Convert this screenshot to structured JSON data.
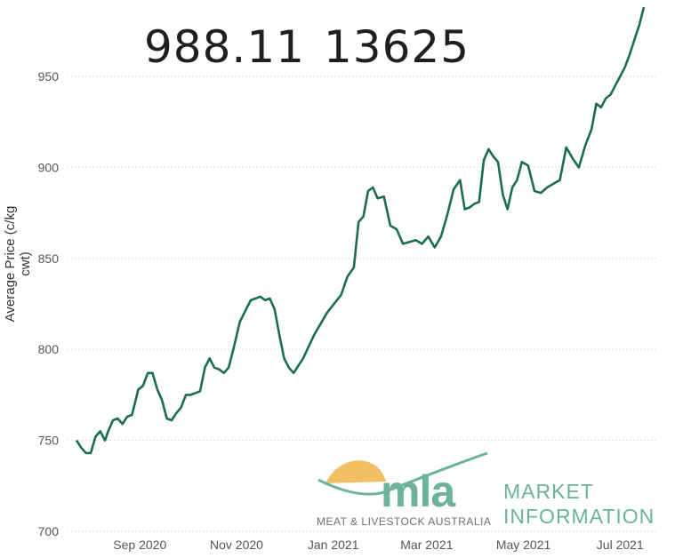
{
  "headline": {
    "price": "988.11",
    "volume": "13625"
  },
  "logo": {
    "name": "mla",
    "subtitle": "MEAT & LIVESTOCK AUSTRALIA",
    "tag_line1": "MARKET",
    "tag_line2": "INFORMATION",
    "sun_color": "#f2c063",
    "accent_color": "#6bb39a"
  },
  "chart_data": {
    "type": "line",
    "ylabel": "Average Price (c/kg cwt)",
    "xlabel": "",
    "ylim": [
      700,
      975
    ],
    "yticks": [
      700,
      750,
      800,
      850,
      900,
      950
    ],
    "xticks": [
      {
        "label": "Sep 2020",
        "date": "2020-09-01"
      },
      {
        "label": "Nov 2020",
        "date": "2020-11-01"
      },
      {
        "label": "Jan 2021",
        "date": "2021-01-01"
      },
      {
        "label": "Mar 2021",
        "date": "2021-03-01"
      },
      {
        "label": "May 2021",
        "date": "2021-05-01"
      },
      {
        "label": "Jul 2021",
        "date": "2021-07-01"
      }
    ],
    "grid": "horizontal-dotted",
    "line_color": "#1b6e4c",
    "series": [
      {
        "x": [
          "2020-07-23",
          "2020-07-26",
          "2020-07-29",
          "2020-08-01",
          "2020-08-04",
          "2020-08-07",
          "2020-08-10",
          "2020-08-12",
          "2020-08-15",
          "2020-08-18",
          "2020-08-21",
          "2020-08-24",
          "2020-08-27",
          "2020-08-31",
          "2020-09-03",
          "2020-09-06",
          "2020-09-09",
          "2020-09-12",
          "2020-09-15",
          "2020-09-18",
          "2020-09-21",
          "2020-09-24",
          "2020-09-27",
          "2020-09-30",
          "2020-10-03",
          "2020-10-06",
          "2020-10-09",
          "2020-10-12",
          "2020-10-15",
          "2020-10-18",
          "2020-10-21",
          "2020-10-24",
          "2020-10-27",
          "2020-10-30",
          "2020-11-03",
          "2020-11-07",
          "2020-11-10",
          "2020-11-13",
          "2020-11-16",
          "2020-11-19",
          "2020-11-22",
          "2020-11-25",
          "2020-11-28",
          "2020-12-01",
          "2020-12-04",
          "2020-12-07",
          "2020-12-10",
          "2020-12-13",
          "2020-12-20",
          "2020-12-28",
          "2021-01-06",
          "2021-01-10",
          "2021-01-14",
          "2021-01-17",
          "2021-01-20",
          "2021-01-23",
          "2021-01-26",
          "2021-01-29",
          "2021-02-02",
          "2021-02-06",
          "2021-02-10",
          "2021-02-14",
          "2021-02-18",
          "2021-02-22",
          "2021-02-26",
          "2021-03-02",
          "2021-03-06",
          "2021-03-10",
          "2021-03-14",
          "2021-03-18",
          "2021-03-22",
          "2021-03-25",
          "2021-03-28",
          "2021-03-31",
          "2021-04-03",
          "2021-04-06",
          "2021-04-09",
          "2021-04-12",
          "2021-04-15",
          "2021-04-18",
          "2021-04-21",
          "2021-04-24",
          "2021-04-27",
          "2021-04-30",
          "2021-05-04",
          "2021-05-08",
          "2021-05-12",
          "2021-05-16",
          "2021-05-20",
          "2021-05-24",
          "2021-05-28",
          "2021-06-01",
          "2021-06-05",
          "2021-06-09",
          "2021-06-13",
          "2021-06-16",
          "2021-06-19",
          "2021-06-22",
          "2021-06-25",
          "2021-06-28",
          "2021-07-01",
          "2021-07-04",
          "2021-07-07",
          "2021-07-10",
          "2021-07-13",
          "2021-07-16"
        ],
        "values": [
          750,
          746,
          743,
          743,
          752,
          755,
          750,
          755,
          761,
          762,
          759,
          763,
          764,
          778,
          780,
          787,
          787,
          778,
          772,
          762,
          761,
          765,
          768,
          775,
          775,
          776,
          777,
          790,
          795,
          790,
          789,
          787,
          790,
          800,
          815,
          822,
          827,
          828,
          829,
          827,
          828,
          822,
          808,
          795,
          790,
          787,
          791,
          795,
          808,
          820,
          830,
          840,
          845,
          870,
          873,
          887,
          889,
          883,
          884,
          868,
          866,
          858,
          859,
          860,
          858,
          862,
          856,
          862,
          874,
          888,
          893,
          877,
          878,
          880,
          881,
          904,
          910,
          906,
          903,
          885,
          877,
          889,
          893,
          903,
          901,
          887,
          886,
          889,
          891,
          893,
          911,
          905,
          900,
          912,
          921,
          935,
          933,
          938,
          940,
          945,
          950,
          955,
          962,
          970,
          978,
          988.11
        ]
      }
    ]
  }
}
